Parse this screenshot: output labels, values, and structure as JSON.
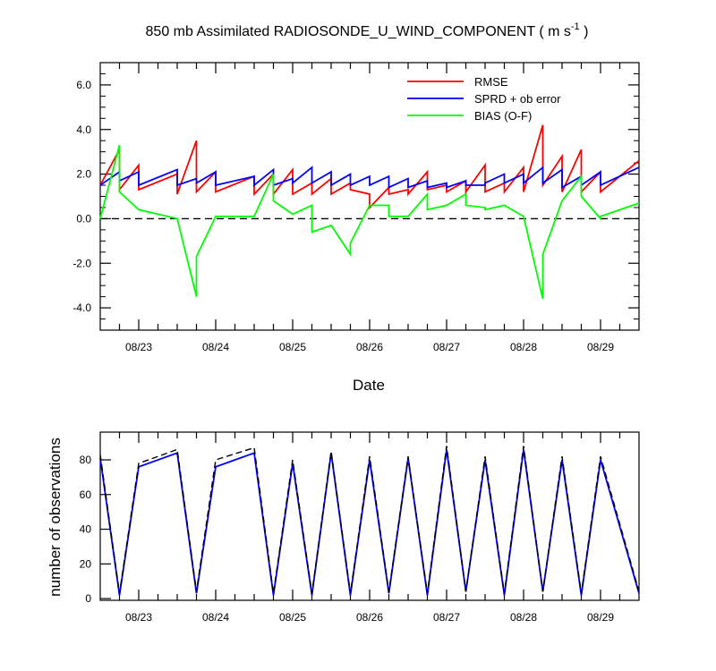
{
  "chart_data": [
    {
      "type": "line",
      "title": "850 mb Assimilated RADIOSONDE_U_WIND_COMPONENT ( m s",
      "title_superscript": "-1",
      "title_end": " )",
      "xlabel": "Date",
      "ylabel": "",
      "xlim": [
        0,
        7
      ],
      "ylim": [
        -5,
        7
      ],
      "x_tick_labels": [
        "08/23",
        "08/24",
        "08/25",
        "08/26",
        "08/27",
        "08/28",
        "08/29"
      ],
      "x_tick_positions": [
        0.5,
        1.5,
        2.5,
        3.5,
        4.5,
        5.5,
        6.5
      ],
      "y_ticks": [
        -4,
        -2,
        0,
        2,
        4,
        6
      ],
      "y_tick_labels": [
        "-4.0",
        "-2.0",
        "0.0",
        "2.0",
        "4.0",
        "6.0"
      ],
      "zero_line": {
        "y": 0,
        "style": "dashed",
        "color": "#000000"
      },
      "legend_position": "top-right",
      "series": [
        {
          "name": "RMSE",
          "color": "#ff0000",
          "x": [
            0.0,
            0.25,
            0.25,
            0.5,
            0.5,
            1.0,
            1.0,
            1.25,
            1.25,
            1.5,
            1.5,
            2.0,
            2.0,
            2.25,
            2.25,
            2.5,
            2.5,
            2.75,
            2.75,
            3.0,
            3.0,
            3.25,
            3.25,
            3.5,
            3.5,
            3.75,
            3.75,
            4.0,
            4.0,
            4.25,
            4.25,
            4.5,
            4.5,
            4.75,
            4.75,
            5.0,
            5.0,
            5.25,
            5.25,
            5.5,
            5.5,
            5.75,
            5.75,
            6.0,
            6.0,
            6.25,
            6.25,
            6.5,
            6.5,
            7.0
          ],
          "y": [
            1.5,
            3.1,
            1.3,
            2.4,
            1.3,
            2.0,
            1.1,
            3.5,
            1.2,
            2.1,
            1.2,
            1.9,
            1.1,
            2.0,
            1.1,
            2.2,
            1.1,
            1.6,
            1.1,
            1.8,
            1.1,
            1.6,
            1.3,
            1.1,
            0.5,
            1.4,
            1.1,
            1.3,
            1.1,
            2.1,
            1.3,
            1.5,
            1.2,
            1.7,
            1.2,
            2.4,
            1.2,
            1.6,
            1.2,
            2.3,
            1.2,
            4.2,
            1.5,
            2.8,
            1.2,
            3.1,
            1.2,
            2.1,
            1.2,
            2.6
          ]
        },
        {
          "name": "SPRD + ob error",
          "color": "#0000ff",
          "x": [
            0.0,
            0.25,
            0.25,
            0.5,
            0.5,
            1.0,
            1.0,
            1.25,
            1.25,
            1.5,
            1.5,
            2.0,
            2.0,
            2.25,
            2.25,
            2.5,
            2.5,
            2.75,
            2.75,
            3.0,
            3.0,
            3.25,
            3.25,
            3.5,
            3.5,
            3.75,
            3.75,
            4.0,
            4.0,
            4.25,
            4.25,
            4.5,
            4.5,
            4.75,
            4.75,
            5.0,
            5.0,
            5.25,
            5.25,
            5.5,
            5.5,
            5.75,
            5.75,
            6.0,
            6.0,
            6.25,
            6.25,
            6.5,
            6.5,
            7.0
          ],
          "y": [
            1.5,
            2.1,
            1.7,
            2.1,
            1.5,
            2.2,
            1.5,
            1.8,
            1.6,
            2.1,
            1.5,
            1.9,
            1.5,
            2.2,
            1.5,
            1.8,
            1.6,
            2.3,
            1.6,
            2.1,
            1.5,
            2.0,
            1.5,
            1.9,
            1.5,
            1.9,
            1.4,
            1.8,
            1.4,
            1.7,
            1.4,
            1.6,
            1.4,
            1.7,
            1.5,
            1.5,
            1.6,
            2.0,
            1.6,
            2.0,
            1.6,
            2.3,
            1.6,
            2.2,
            1.4,
            1.9,
            1.5,
            2.1,
            1.5,
            2.3
          ]
        },
        {
          "name": "BIAS (O-F)",
          "color": "#00ff00",
          "x": [
            0.0,
            0.25,
            0.25,
            0.5,
            0.5,
            1.0,
            1.0,
            1.25,
            1.25,
            1.5,
            1.5,
            2.0,
            2.0,
            2.25,
            2.25,
            2.5,
            2.5,
            2.75,
            2.75,
            3.0,
            3.0,
            3.25,
            3.25,
            3.5,
            3.5,
            3.75,
            3.75,
            4.0,
            4.0,
            4.25,
            4.25,
            4.5,
            4.5,
            4.75,
            4.75,
            5.0,
            5.0,
            5.25,
            5.25,
            5.5,
            5.5,
            5.75,
            5.75,
            6.0,
            6.0,
            6.25,
            6.25,
            6.5,
            6.5,
            7.0
          ],
          "y": [
            0.0,
            3.3,
            1.2,
            0.4,
            0.4,
            0.0,
            0.0,
            -3.5,
            -1.7,
            0.1,
            0.1,
            0.1,
            0.1,
            2.0,
            0.8,
            0.2,
            0.2,
            0.6,
            -0.6,
            -0.3,
            -0.3,
            -1.6,
            -1.1,
            0.6,
            0.6,
            0.6,
            0.1,
            0.1,
            0.1,
            1.1,
            0.4,
            0.6,
            0.6,
            1.1,
            0.6,
            0.5,
            0.4,
            0.6,
            0.6,
            0.1,
            0.1,
            -3.6,
            -1.6,
            0.8,
            0.8,
            1.9,
            1.0,
            0.0,
            0.1,
            0.7
          ]
        }
      ]
    },
    {
      "type": "line",
      "title": "",
      "xlabel": "",
      "ylabel": "number of observations",
      "xlim": [
        0,
        7
      ],
      "ylim": [
        -1,
        96
      ],
      "x_tick_labels": [
        "08/23",
        "08/24",
        "08/25",
        "08/26",
        "08/27",
        "08/28",
        "08/29"
      ],
      "x_tick_positions": [
        0.5,
        1.5,
        2.5,
        3.5,
        4.5,
        5.5,
        6.5
      ],
      "y_ticks": [
        0,
        20,
        40,
        60,
        80
      ],
      "y_tick_labels": [
        "0",
        "20",
        "40",
        "60",
        "80"
      ],
      "legend_position": "none",
      "series": [
        {
          "color": "#0000ff",
          "style": "solid",
          "x": [
            0.0,
            0.25,
            0.5,
            1.0,
            1.25,
            1.5,
            2.0,
            2.25,
            2.5,
            2.75,
            3.0,
            3.25,
            3.5,
            3.75,
            4.0,
            4.25,
            4.5,
            4.75,
            5.0,
            5.25,
            5.5,
            5.75,
            6.0,
            6.25,
            6.5,
            7.0
          ],
          "y": [
            81,
            2,
            76,
            84,
            3,
            76,
            84,
            2,
            78,
            2,
            84,
            2,
            80,
            3,
            81,
            2,
            86,
            4,
            80,
            2,
            86,
            4,
            80,
            2,
            80,
            3
          ]
        },
        {
          "color": "#000000",
          "style": "dashed",
          "x": [
            0.0,
            0.25,
            0.5,
            1.0,
            1.25,
            1.5,
            2.0,
            2.25,
            2.5,
            2.75,
            3.0,
            3.25,
            3.5,
            3.75,
            4.0,
            4.25,
            4.5,
            4.75,
            5.0,
            5.25,
            5.5,
            5.75,
            6.0,
            6.25,
            6.5,
            7.0
          ],
          "y": [
            83,
            3,
            78,
            86,
            4,
            80,
            87,
            3,
            80,
            3,
            85,
            3,
            82,
            4,
            82,
            3,
            88,
            4,
            82,
            3,
            88,
            4,
            82,
            3,
            82,
            4
          ]
        }
      ]
    }
  ]
}
